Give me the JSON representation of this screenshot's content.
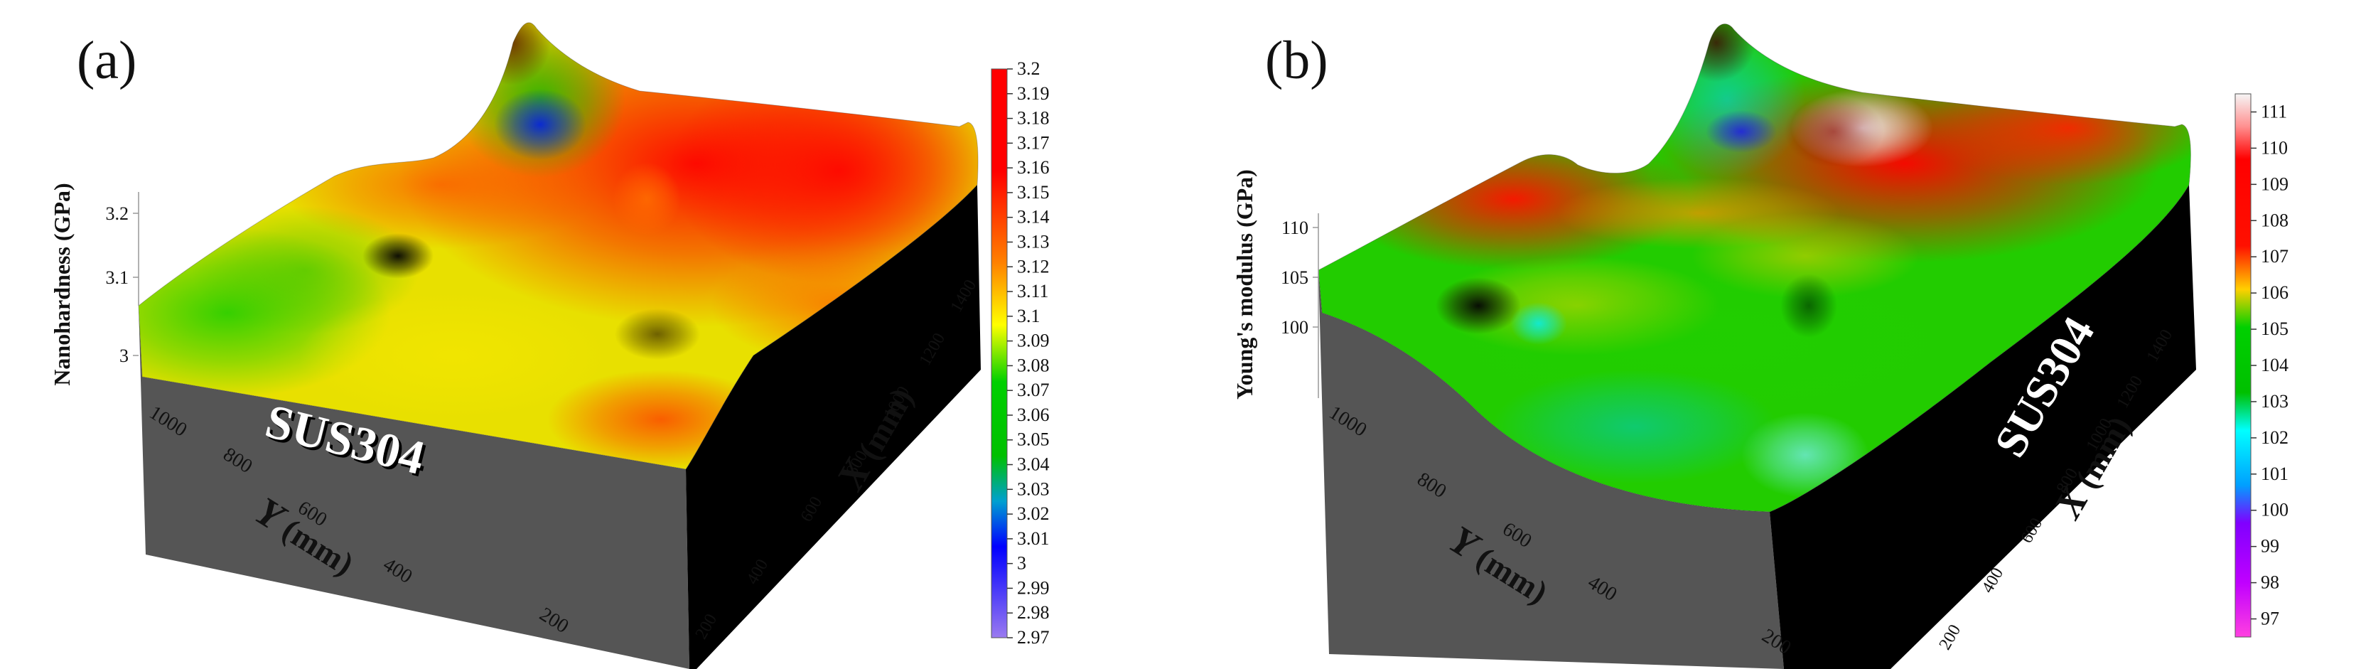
{
  "chart_data": [
    {
      "type": "surface3d",
      "panel_label": "(a)",
      "material_label": "SUS304",
      "zlabel": "Nanohardness (GPa)",
      "xlabel": "X (mm)",
      "xlabel_var": "X",
      "ylabel": "Y (mm)",
      "ylabel_var": "Y",
      "unit": "(mm)",
      "x_ticks": [
        "200",
        "400",
        "600",
        "800",
        "1000",
        "1200",
        "1400"
      ],
      "y_ticks": [
        "1000",
        "800",
        "600",
        "400",
        "200"
      ],
      "z_ticks": [
        "3",
        "3.1",
        "3.2"
      ],
      "colorbar_ticks": [
        "3.2",
        "3.19",
        "3.18",
        "3.17",
        "3.16",
        "3.15",
        "3.14",
        "3.13",
        "3.12",
        "3.11",
        "3.1",
        "3.09",
        "3.08",
        "3.07",
        "3.06",
        "3.05",
        "3.04",
        "3.03",
        "3.02",
        "3.01",
        "3",
        "2.99",
        "2.98",
        "2.97"
      ],
      "colorbar_range": [
        2.97,
        3.2
      ]
    },
    {
      "type": "surface3d",
      "panel_label": "(b)",
      "material_label": "SUS304",
      "zlabel": "Young's modulus (GPa)",
      "xlabel": "X (mm)",
      "xlabel_var": "X",
      "ylabel": "Y (mm)",
      "ylabel_var": "Y",
      "unit": "(mm)",
      "x_ticks": [
        "200",
        "400",
        "600",
        "800",
        "1000",
        "1200",
        "1400"
      ],
      "y_ticks": [
        "1000",
        "800",
        "600",
        "400",
        "200"
      ],
      "z_ticks": [
        "100",
        "105",
        "110"
      ],
      "colorbar_ticks": [
        "111",
        "110",
        "109",
        "108",
        "107",
        "106",
        "105",
        "104",
        "103",
        "102",
        "101",
        "100",
        "99",
        "98",
        "97"
      ],
      "colorbar_range": [
        96.5,
        111.5
      ]
    }
  ]
}
